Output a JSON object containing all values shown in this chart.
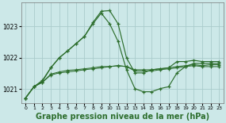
{
  "background_color": "#cce8e8",
  "grid_color": "#aacccc",
  "line_color": "#2d6e2d",
  "marker_color": "#2d6e2d",
  "xlabel": "Graphe pression niveau de la mer (hPa)",
  "xlabel_fontsize": 7,
  "xlim": [
    -0.5,
    23.5
  ],
  "ylim": [
    1020.55,
    1023.75
  ],
  "yticks": [
    1021,
    1022,
    1023
  ],
  "xticks": [
    0,
    1,
    2,
    3,
    4,
    5,
    6,
    7,
    8,
    9,
    10,
    11,
    12,
    13,
    14,
    15,
    16,
    17,
    18,
    19,
    20,
    21,
    22,
    23
  ],
  "series_peak1": [
    1020.72,
    1021.08,
    1021.25,
    1021.68,
    1022.0,
    1022.22,
    1022.45,
    1022.68,
    1023.12,
    1023.48,
    1023.5,
    1023.08,
    1022.0,
    1021.52,
    1021.52,
    1021.62,
    1021.65,
    1021.68,
    1021.88,
    1021.88,
    1021.92,
    1021.88,
    1021.88,
    1021.88
  ],
  "series_peak2": [
    1020.72,
    1021.08,
    1021.28,
    1021.68,
    1022.0,
    1022.22,
    1022.45,
    1022.68,
    1023.08,
    1023.42,
    1023.08,
    1022.52,
    1021.62,
    1021.02,
    1020.92,
    1020.92,
    1021.02,
    1021.08,
    1021.52,
    1021.72,
    1021.82,
    1021.82,
    1021.82,
    1021.82
  ],
  "series_flat1": [
    1020.72,
    1021.08,
    1021.22,
    1021.48,
    1021.55,
    1021.6,
    1021.62,
    1021.65,
    1021.68,
    1021.72,
    1021.72,
    1021.75,
    1021.72,
    1021.62,
    1021.62,
    1021.62,
    1021.65,
    1021.68,
    1021.72,
    1021.75,
    1021.78,
    1021.75,
    1021.78,
    1021.78
  ],
  "series_flat2": [
    1020.72,
    1021.08,
    1021.22,
    1021.45,
    1021.52,
    1021.55,
    1021.58,
    1021.62,
    1021.65,
    1021.68,
    1021.72,
    1021.75,
    1021.72,
    1021.58,
    1021.58,
    1021.58,
    1021.62,
    1021.65,
    1021.68,
    1021.72,
    1021.75,
    1021.72,
    1021.72,
    1021.72
  ]
}
